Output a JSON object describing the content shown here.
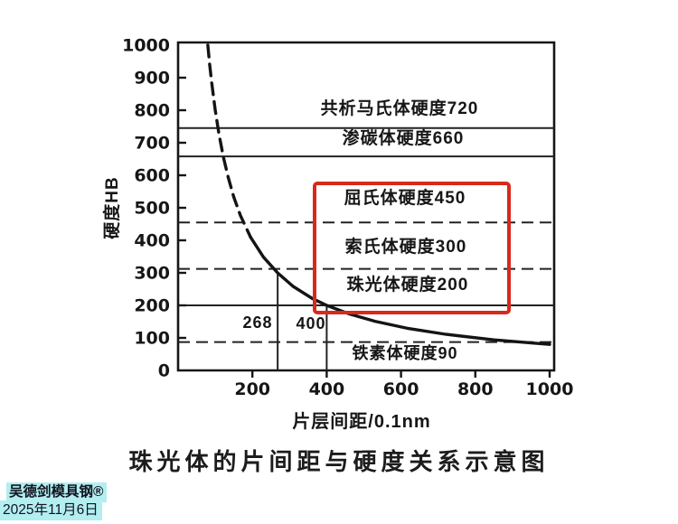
{
  "figure": {
    "caption": "珠光体的片间距与硬度关系示意图",
    "watermark": {
      "brand": "吴德剑模具钢®",
      "date": "2025年11月6日",
      "highlight_color": "#b3eef0"
    }
  },
  "chart_data": {
    "type": "line",
    "title": "珠光体的片间距与硬度关系示意图",
    "xlabel": "片层间距/0.1nm",
    "ylabel": "硬度HB",
    "xlim": [
      0,
      1000
    ],
    "ylim": [
      0,
      1000
    ],
    "grid": "reference lines only",
    "xticks": [
      200,
      400,
      600,
      800,
      1000
    ],
    "yticks": [
      0,
      100,
      200,
      300,
      400,
      500,
      600,
      700,
      800,
      900,
      1000
    ],
    "curve": {
      "relation": "HB ≈ 80000 / spacing (schematic hyperbola, dashed at small spacing)",
      "dashed_until_x": 195,
      "points": [
        [
          80,
          1000
        ],
        [
          85,
          941
        ],
        [
          90,
          889
        ],
        [
          100,
          800
        ],
        [
          110,
          727
        ],
        [
          122,
          656
        ],
        [
          135,
          593
        ],
        [
          150,
          533
        ],
        [
          168,
          476
        ],
        [
          195,
          410
        ],
        [
          230,
          348
        ],
        [
          268,
          300
        ],
        [
          310,
          258
        ],
        [
          360,
          222
        ],
        [
          400,
          200
        ],
        [
          460,
          174
        ],
        [
          530,
          151
        ],
        [
          620,
          129
        ],
        [
          720,
          111
        ],
        [
          850,
          94
        ],
        [
          1000,
          80
        ]
      ]
    },
    "reference_lines": [
      {
        "hb": 745,
        "style": "solid"
      },
      {
        "hb": 658,
        "style": "solid"
      },
      {
        "hb": 455,
        "style": "dashed"
      },
      {
        "hb": 312,
        "style": "dashed"
      },
      {
        "hb": 200,
        "style": "solid"
      },
      {
        "hb": 87,
        "style": "dashed"
      }
    ],
    "spacing_markers": [
      {
        "x": 268,
        "to_hb": 300,
        "label": "268"
      },
      {
        "x": 400,
        "to_hb": 200,
        "label": "400"
      }
    ],
    "phase_labels": [
      {
        "text": "共析马氏体硬度720",
        "hb": 720,
        "boxed": false
      },
      {
        "text": "渗碳体硬度660",
        "hb": 660,
        "boxed": false
      },
      {
        "text": "屈氏体硬度450",
        "hb": 450,
        "boxed": true
      },
      {
        "text": "索氏体硬度300",
        "hb": 300,
        "boxed": true
      },
      {
        "text": "珠光体硬度200",
        "hb": 200,
        "boxed": true
      },
      {
        "text": "铁素体硬度90",
        "hb": 90,
        "boxed": false
      }
    ],
    "highlight_box_color": "#d8291a",
    "ink_color": "#161616"
  }
}
